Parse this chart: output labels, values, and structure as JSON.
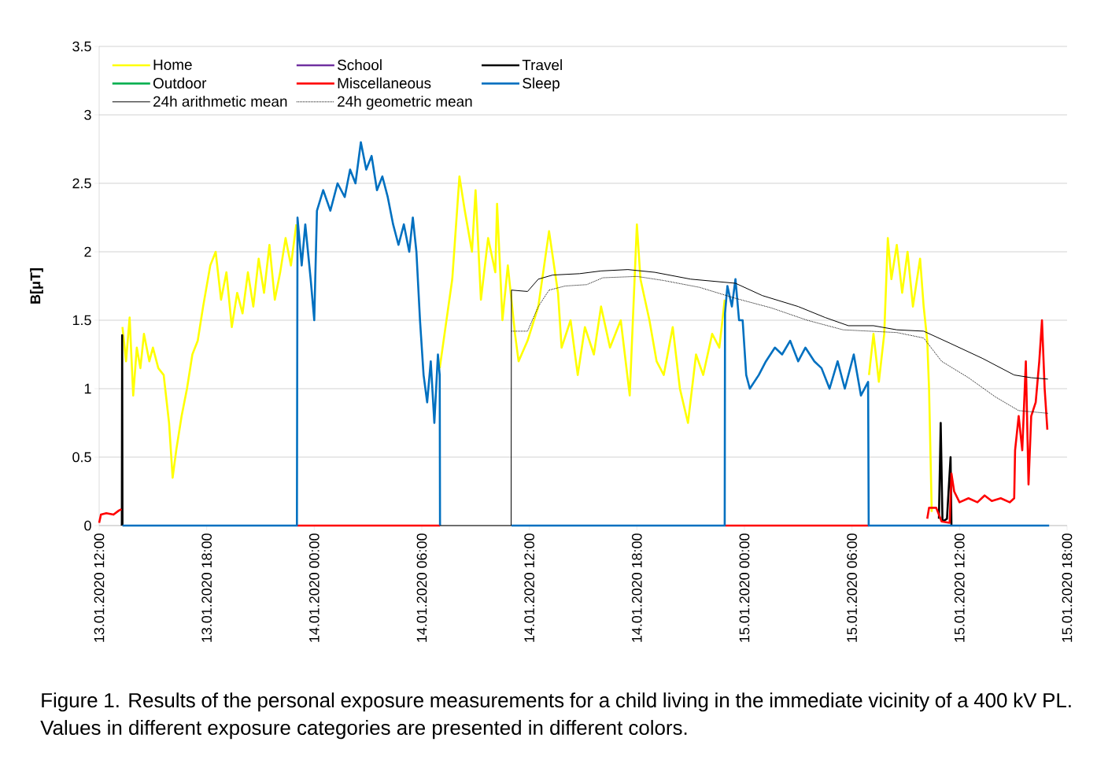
{
  "chart_data": {
    "type": "line",
    "ylabel": "B[μT]",
    "annotations": [
      "Figure 1. Results of the personal exposure measurements for a child living in the immediate vicinity of a 400 kV PL. Values in different exposure categories are presented in different colors."
    ],
    "xlim": [
      "2020-01-13T12:00",
      "2020-01-15T18:00"
    ],
    "xticks": [
      {
        "value": "2020-01-13T12:00",
        "label": "13.01.2020 12:00"
      },
      {
        "value": "2020-01-13T18:00",
        "label": "13.01.2020 18:00"
      },
      {
        "value": "2020-01-14T00:00",
        "label": "14.01.2020 00:00"
      },
      {
        "value": "2020-01-14T06:00",
        "label": "14.01.2020 06:00"
      },
      {
        "value": "2020-01-14T12:00",
        "label": "14.01.2020 12:00"
      },
      {
        "value": "2020-01-14T18:00",
        "label": "14.01.2020 18:00"
      },
      {
        "value": "2020-01-15T00:00",
        "label": "15.01.2020 00:00"
      },
      {
        "value": "2020-01-15T06:00",
        "label": "15.01.2020 06:00"
      },
      {
        "value": "2020-01-15T12:00",
        "label": "15.01.2020 12:00"
      },
      {
        "value": "2020-01-15T18:00",
        "label": "15.01.2020 18:00"
      }
    ],
    "ylim": [
      0,
      3.5
    ],
    "yticks": [
      0,
      0.5,
      1,
      1.5,
      2,
      2.5,
      3,
      3.5
    ],
    "grid": "y",
    "legend": "top left",
    "series": [
      {
        "name": "Home",
        "color": "#ffff00",
        "x": [
          "2020-01-13T13:18",
          "2020-01-13T13:30",
          "2020-01-13T13:42",
          "2020-01-13T13:54",
          "2020-01-13T14:06",
          "2020-01-13T14:18",
          "2020-01-13T14:30",
          "2020-01-13T14:48",
          "2020-01-13T15:00",
          "2020-01-13T15:18",
          "2020-01-13T15:36",
          "2020-01-13T15:54",
          "2020-01-13T16:06",
          "2020-01-13T16:18",
          "2020-01-13T16:36",
          "2020-01-13T16:54",
          "2020-01-13T17:12",
          "2020-01-13T17:30",
          "2020-01-13T17:48",
          "2020-01-13T18:12",
          "2020-01-13T18:30",
          "2020-01-13T18:48",
          "2020-01-13T19:06",
          "2020-01-13T19:24",
          "2020-01-13T19:42",
          "2020-01-13T20:00",
          "2020-01-13T20:18",
          "2020-01-13T20:36",
          "2020-01-13T20:54",
          "2020-01-13T21:12",
          "2020-01-13T21:30",
          "2020-01-13T21:48",
          "2020-01-13T22:06",
          "2020-01-13T22:24",
          "2020-01-13T22:42",
          "2020-01-13T23:00",
          "2020-01-14T02:00",
          "2020-01-14T06:48",
          "2020-01-14T07:00",
          "2020-01-14T07:42",
          "2020-01-14T08:06",
          "2020-01-14T08:24",
          "2020-01-14T08:48",
          "2020-01-14T09:00",
          "2020-01-14T09:18",
          "2020-01-14T09:42",
          "2020-01-14T10:06",
          "2020-01-14T10:12",
          "2020-01-14T10:30",
          "2020-01-14T10:48",
          "2020-01-14T11:12",
          "2020-01-14T11:24",
          "2020-01-14T11:54",
          "2020-01-14T12:30",
          "2020-01-14T13:06",
          "2020-01-14T13:36",
          "2020-01-14T13:48",
          "2020-01-14T14:18",
          "2020-01-14T14:42",
          "2020-01-14T15:06",
          "2020-01-14T15:36",
          "2020-01-14T16:00",
          "2020-01-14T16:30",
          "2020-01-14T17:06",
          "2020-01-14T17:36",
          "2020-01-14T18:00",
          "2020-01-14T18:12",
          "2020-01-14T18:42",
          "2020-01-14T19:06",
          "2020-01-14T19:30",
          "2020-01-14T20:00",
          "2020-01-14T20:24",
          "2020-01-14T20:51",
          "2020-01-14T21:18",
          "2020-01-14T21:42",
          "2020-01-14T22:12",
          "2020-01-14T22:36",
          "2020-01-14T22:54",
          "2020-01-15T02:00",
          "2020-01-15T06:57",
          "2020-01-15T07:12",
          "2020-01-15T07:30",
          "2020-01-15T07:48",
          "2020-01-15T08:00",
          "2020-01-15T08:12",
          "2020-01-15T08:30",
          "2020-01-15T08:48",
          "2020-01-15T09:06",
          "2020-01-15T09:24",
          "2020-01-15T09:48",
          "2020-01-15T10:00",
          "2020-01-15T10:12",
          "2020-01-15T10:18",
          "2020-01-15T10:27"
        ],
        "values": [
          1.45,
          1.2,
          1.52,
          0.95,
          1.3,
          1.15,
          1.4,
          1.2,
          1.3,
          1.15,
          1.1,
          0.75,
          0.35,
          0.55,
          0.8,
          1.0,
          1.25,
          1.35,
          1.6,
          1.9,
          2.0,
          1.65,
          1.85,
          1.45,
          1.7,
          1.55,
          1.85,
          1.6,
          1.95,
          1.7,
          2.05,
          1.65,
          1.85,
          2.1,
          1.9,
          2.2,
          null,
          null,
          1.15,
          1.8,
          2.55,
          2.3,
          2.0,
          2.45,
          1.65,
          2.1,
          1.85,
          2.35,
          1.5,
          1.9,
          1.4,
          1.2,
          1.35,
          1.6,
          2.15,
          1.7,
          1.3,
          1.5,
          1.1,
          1.45,
          1.25,
          1.6,
          1.3,
          1.5,
          0.95,
          2.2,
          1.8,
          1.5,
          1.2,
          1.1,
          1.45,
          1.0,
          0.75,
          1.25,
          1.1,
          1.4,
          1.3,
          1.65,
          null,
          1.1,
          1.4,
          1.05,
          1.4,
          2.1,
          1.8,
          2.05,
          1.7,
          2.0,
          1.6,
          1.95,
          1.6,
          1.35,
          1.0,
          0.1
        ]
      },
      {
        "name": "School",
        "color": "#7030a0"
      },
      {
        "name": "Travel",
        "color": "#000000",
        "x": [
          "2020-01-13T13:16",
          "2020-01-13T13:17",
          "2020-01-13T13:18",
          "2020-01-13T20:00",
          "2020-01-15T10:51",
          "2020-01-15T10:57",
          "2020-01-15T11:03",
          "2020-01-15T11:18",
          "2020-01-15T11:30",
          "2020-01-15T11:33"
        ],
        "values": [
          0,
          1.39,
          0,
          null,
          0.05,
          0.75,
          0.03,
          0.05,
          0.5,
          0
        ]
      },
      {
        "name": "Outdoor",
        "color": "#00b050"
      },
      {
        "name": "Miscellaneous",
        "color": "#ff0000",
        "x": [
          "2020-01-13T12:00",
          "2020-01-13T12:06",
          "2020-01-13T12:24",
          "2020-01-13T12:48",
          "2020-01-13T13:06",
          "2020-01-13T13:15",
          "2020-01-13T18:00",
          "2020-01-13T23:03",
          "2020-01-14T07:01",
          "2020-01-14T16:00",
          "2020-01-14T22:55",
          "2020-01-15T06:56",
          "2020-01-15T08:00",
          "2020-01-15T10:12",
          "2020-01-15T10:18",
          "2020-01-15T10:42",
          "2020-01-15T11:00",
          "2020-01-15T11:27",
          "2020-01-15T11:33",
          "2020-01-15T11:42",
          "2020-01-15T12:00",
          "2020-01-15T12:30",
          "2020-01-15T13:00",
          "2020-01-15T13:24",
          "2020-01-15T13:48",
          "2020-01-15T14:18",
          "2020-01-15T14:48",
          "2020-01-15T15:03",
          "2020-01-15T15:06",
          "2020-01-15T15:18",
          "2020-01-15T15:30",
          "2020-01-15T15:42",
          "2020-01-15T15:51",
          "2020-01-15T16:00",
          "2020-01-15T16:15",
          "2020-01-15T16:27",
          "2020-01-15T16:36",
          "2020-01-15T16:45",
          "2020-01-15T16:54"
        ],
        "values": [
          0.02,
          0.08,
          0.09,
          0.08,
          0.11,
          0.12,
          null,
          0,
          0,
          null,
          0,
          0,
          null,
          0.05,
          0.13,
          0.13,
          0.03,
          0.02,
          0.38,
          0.25,
          0.17,
          0.2,
          0.17,
          0.22,
          0.18,
          0.2,
          0.17,
          0.2,
          0.55,
          0.8,
          0.55,
          1.2,
          0.3,
          0.8,
          0.9,
          1.2,
          1.5,
          1.0,
          0.7
        ]
      },
      {
        "name": "Sleep",
        "color": "#0070c0",
        "x": [
          "2020-01-13T13:18",
          "2020-01-13T23:02",
          "2020-01-13T23:04",
          "2020-01-13T23:18",
          "2020-01-13T23:30",
          "2020-01-13T23:48",
          "2020-01-14T00:00",
          "2020-01-14T00:09",
          "2020-01-14T00:30",
          "2020-01-14T00:54",
          "2020-01-14T01:18",
          "2020-01-14T01:42",
          "2020-01-14T02:00",
          "2020-01-14T02:18",
          "2020-01-14T02:36",
          "2020-01-14T02:54",
          "2020-01-14T03:12",
          "2020-01-14T03:30",
          "2020-01-14T03:48",
          "2020-01-14T04:06",
          "2020-01-14T04:24",
          "2020-01-14T04:42",
          "2020-01-14T05:00",
          "2020-01-14T05:18",
          "2020-01-14T05:30",
          "2020-01-14T05:42",
          "2020-01-14T05:54",
          "2020-01-14T06:06",
          "2020-01-14T06:18",
          "2020-01-14T06:30",
          "2020-01-14T06:42",
          "2020-01-14T06:54",
          "2020-01-14T07:00",
          "2020-01-14T07:01",
          "2020-01-14T09:00",
          "2020-01-14T11:00",
          "2020-01-14T22:54",
          "2020-01-14T22:55",
          "2020-01-14T23:03",
          "2020-01-14T23:18",
          "2020-01-14T23:30",
          "2020-01-14T23:42",
          "2020-01-14T23:54",
          "2020-01-15T00:06",
          "2020-01-15T00:18",
          "2020-01-15T00:48",
          "2020-01-15T01:12",
          "2020-01-15T01:42",
          "2020-01-15T02:06",
          "2020-01-15T02:33",
          "2020-01-15T03:00",
          "2020-01-15T03:24",
          "2020-01-15T03:54",
          "2020-01-15T04:18",
          "2020-01-15T04:45",
          "2020-01-15T05:12",
          "2020-01-15T05:36",
          "2020-01-15T06:06",
          "2020-01-15T06:30",
          "2020-01-15T06:54",
          "2020-01-15T06:56",
          "2020-01-15T17:00"
        ],
        "values": [
          0,
          0,
          2.25,
          1.9,
          2.2,
          1.8,
          1.5,
          2.3,
          2.45,
          2.3,
          2.5,
          2.4,
          2.6,
          2.5,
          2.8,
          2.6,
          2.7,
          2.45,
          2.55,
          2.4,
          2.2,
          2.05,
          2.2,
          2.0,
          2.25,
          2.0,
          1.5,
          1.1,
          0.9,
          1.2,
          0.75,
          1.25,
          1.1,
          0,
          null,
          0,
          0,
          1.55,
          1.75,
          1.6,
          1.8,
          1.5,
          1.5,
          1.1,
          1.0,
          1.1,
          1.2,
          1.3,
          1.25,
          1.35,
          1.2,
          1.3,
          1.2,
          1.15,
          1.0,
          1.2,
          1.0,
          1.25,
          0.95,
          1.05,
          0,
          0
        ]
      },
      {
        "name": "24h arithmetic mean",
        "color": "#000000",
        "line_style": "solid",
        "x": [
          "2020-01-14T07:01",
          "2020-01-14T10:59",
          "2020-01-14T11:00",
          "2020-01-14T11:54",
          "2020-01-14T12:30",
          "2020-01-14T13:18",
          "2020-01-14T14:48",
          "2020-01-14T16:00",
          "2020-01-14T17:30",
          "2020-01-14T19:00",
          "2020-01-14T21:00",
          "2020-01-14T23:30",
          "2020-01-15T01:00",
          "2020-01-15T03:00",
          "2020-01-15T04:30",
          "2020-01-15T05:48",
          "2020-01-15T07:12",
          "2020-01-15T08:30",
          "2020-01-15T10:00",
          "2020-01-15T11:30",
          "2020-01-15T13:18",
          "2020-01-15T15:03",
          "2020-01-15T16:00",
          "2020-01-15T16:56"
        ],
        "values": [
          0,
          0,
          1.72,
          1.71,
          1.8,
          1.83,
          1.84,
          1.86,
          1.87,
          1.85,
          1.8,
          1.77,
          1.68,
          1.6,
          1.52,
          1.46,
          1.46,
          1.43,
          1.42,
          1.33,
          1.22,
          1.1,
          1.08,
          1.07
        ]
      },
      {
        "name": "24h geometric mean",
        "color": "#000000",
        "line_style": "dotted",
        "x": [
          "2020-01-14T11:00",
          "2020-01-14T11:54",
          "2020-01-14T12:30",
          "2020-01-14T13:06",
          "2020-01-14T14:00",
          "2020-01-14T15:12",
          "2020-01-14T16:06",
          "2020-01-14T18:00",
          "2020-01-14T19:30",
          "2020-01-14T21:30",
          "2020-01-14T23:30",
          "2020-01-15T01:30",
          "2020-01-15T03:30",
          "2020-01-15T05:30",
          "2020-01-15T07:00",
          "2020-01-15T08:30",
          "2020-01-15T10:00",
          "2020-01-15T11:00",
          "2020-01-15T12:30",
          "2020-01-15T14:00",
          "2020-01-15T15:18",
          "2020-01-15T16:56"
        ],
        "values": [
          1.42,
          1.42,
          1.6,
          1.72,
          1.75,
          1.76,
          1.81,
          1.82,
          1.79,
          1.74,
          1.66,
          1.59,
          1.5,
          1.43,
          1.42,
          1.41,
          1.37,
          1.2,
          1.08,
          0.94,
          0.84,
          0.82
        ]
      }
    ]
  }
}
